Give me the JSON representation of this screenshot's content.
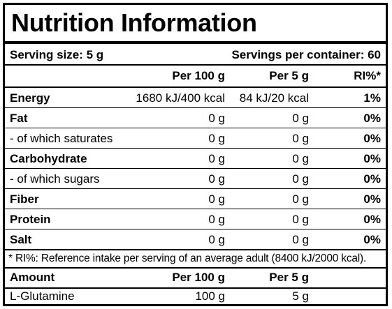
{
  "title": "Nutrition Information",
  "serving": {
    "size": "Serving size: 5 g",
    "per_container": "Servings per container: 60"
  },
  "header": {
    "col1": "Per 100 g",
    "col2": "Per 5 g",
    "col3": "RI%*"
  },
  "rows": [
    {
      "label": "Energy",
      "per100": "1680 kJ/400 kcal",
      "perServing": "84 kJ/20 kcal",
      "ri": "1%"
    },
    {
      "label": "Fat",
      "per100": "0 g",
      "perServing": "0 g",
      "ri": "0%"
    },
    {
      "label": "- of which saturates",
      "per100": "0 g",
      "perServing": "0 g",
      "ri": "0%"
    },
    {
      "label": "Carbohydrate",
      "per100": "0 g",
      "perServing": "0 g",
      "ri": "0%"
    },
    {
      "label": "- of which sugars",
      "per100": "0 g",
      "perServing": "0 g",
      "ri": "0%"
    },
    {
      "label": "Fiber",
      "per100": "0 g",
      "perServing": "0 g",
      "ri": "0%"
    },
    {
      "label": "Protein",
      "per100": "0 g",
      "perServing": "0 g",
      "ri": "0%"
    },
    {
      "label": "Salt",
      "per100": "0 g",
      "perServing": "0 g",
      "ri": "0%"
    }
  ],
  "footnote": "* RI%: Reference intake per serving of an average adult (8400 kJ/2000 kcal).",
  "amount_header": {
    "label": "Amount",
    "col1": "Per 100 g",
    "col2": "Per 5 g"
  },
  "amount_rows": [
    {
      "label": "L-Glutamine",
      "per100": "100 g",
      "perServing": "5 g"
    }
  ]
}
